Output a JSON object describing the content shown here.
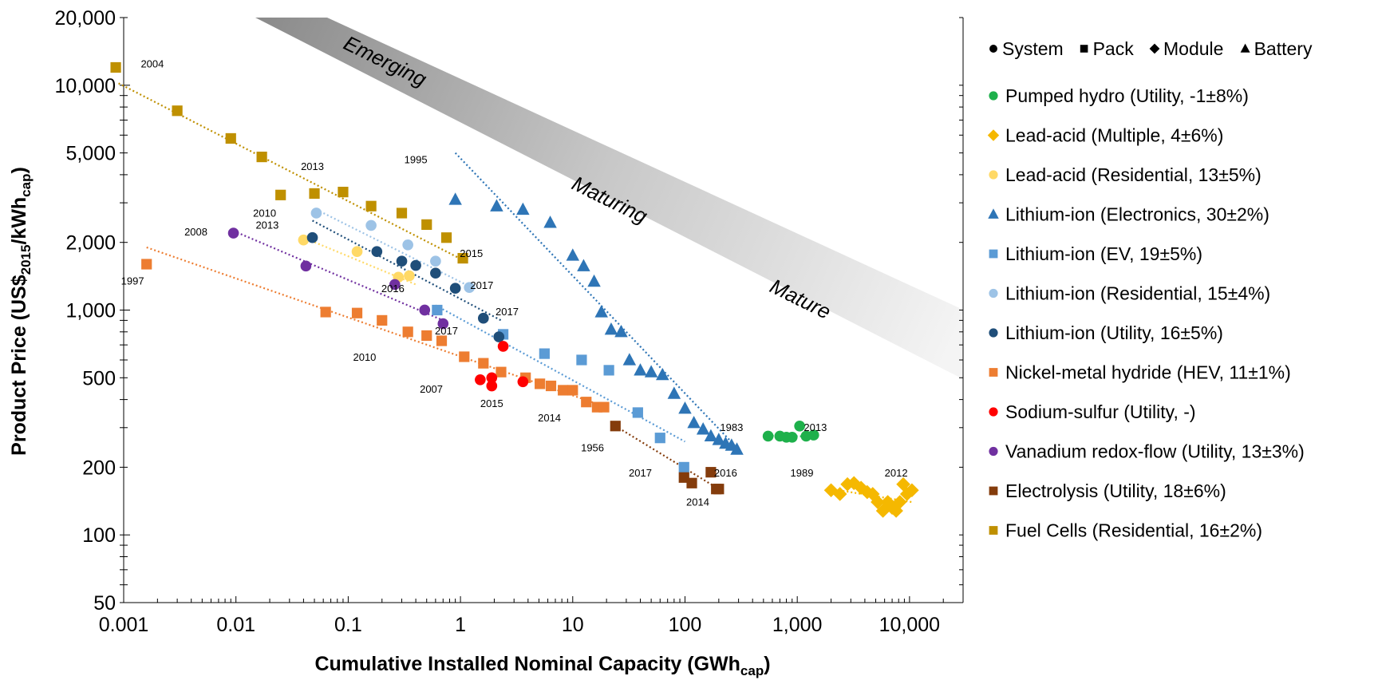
{
  "chart_data": {
    "type": "scatter",
    "xscale": "log",
    "yscale": "log",
    "xlim": [
      0.001,
      30000
    ],
    "ylim": [
      50,
      20000
    ],
    "xlabel_main": "Cumulative Installed Nominal Capacity (GWh",
    "xlabel_sub": "cap",
    "xlabel_end": ")",
    "ylabel_parts": [
      "Product Price (US$",
      "2015",
      "/kWh",
      "cap",
      ")"
    ],
    "x_ticks": [
      {
        "value": 0.001,
        "label": "0.001"
      },
      {
        "value": 0.01,
        "label": "0.01"
      },
      {
        "value": 0.1,
        "label": "0.1"
      },
      {
        "value": 1,
        "label": "1"
      },
      {
        "value": 10,
        "label": "10"
      },
      {
        "value": 100,
        "label": "100"
      },
      {
        "value": 1000,
        "label": "1,000"
      },
      {
        "value": 10000,
        "label": "10,000"
      }
    ],
    "y_ticks": [
      {
        "value": 50,
        "label": "50"
      },
      {
        "value": 100,
        "label": "100"
      },
      {
        "value": 200,
        "label": "200"
      },
      {
        "value": 500,
        "label": "500"
      },
      {
        "value": 1000,
        "label": "1,000"
      },
      {
        "value": 2000,
        "label": "2,000"
      },
      {
        "value": 5000,
        "label": "5,000"
      },
      {
        "value": 10000,
        "label": "10,000"
      },
      {
        "value": 20000,
        "label": "20,000"
      }
    ],
    "bands": [
      {
        "label": "Emerging",
        "x": 0.2,
        "y": 12000
      },
      {
        "label": "Maturing",
        "x": 20,
        "y": 2900
      },
      {
        "label": "Mature",
        "x": 1000,
        "y": 1050
      }
    ],
    "marker_legend": [
      {
        "symbol": "circle",
        "label": "System"
      },
      {
        "symbol": "square",
        "label": "Pack"
      },
      {
        "symbol": "diamond",
        "label": "Module"
      },
      {
        "symbol": "triangle",
        "label": "Battery"
      }
    ],
    "series": [
      {
        "name": "Pumped hydro (Utility, -1±8%)",
        "color": "#1eb04b",
        "marker": "circle",
        "x": [
          550,
          700,
          800,
          900,
          1050,
          1200,
          1400
        ],
        "y": [
          275,
          275,
          272,
          272,
          305,
          275,
          278
        ],
        "trend": [
          [
            550,
            276
          ],
          [
            1400,
            274
          ]
        ]
      },
      {
        "name": "Lead-acid (Multiple, 4±6%)",
        "color": "#f5b800",
        "marker": "diamond",
        "x": [
          2000,
          2400,
          2800,
          3200,
          3700,
          4200,
          4700,
          5200,
          5800,
          6400,
          7000,
          7600,
          8200,
          8800,
          9500,
          10500
        ],
        "y": [
          158,
          152,
          168,
          170,
          162,
          155,
          152,
          140,
          128,
          140,
          132,
          128,
          140,
          168,
          152,
          158
        ],
        "trend": [
          [
            2000,
            160
          ],
          [
            10500,
            140
          ]
        ]
      },
      {
        "name": "Lead-acid (Residential, 13±5%)",
        "color": "#ffd966",
        "marker": "circle",
        "x": [
          0.04,
          0.12,
          0.28,
          0.35
        ],
        "y": [
          2050,
          1820,
          1400,
          1420
        ],
        "trend": [
          [
            0.04,
            2100
          ],
          [
            0.4,
            1300
          ]
        ]
      },
      {
        "name": "Lithium-ion (Electronics, 30±2%)",
        "color": "#2e75b6",
        "marker": "triangle",
        "x": [
          0.9,
          2.1,
          3.6,
          6.3,
          10,
          12.5,
          15.5,
          18,
          22,
          27,
          32,
          40,
          50,
          63,
          80,
          100,
          120,
          145,
          170,
          200,
          230,
          260,
          290
        ],
        "y": [
          3100,
          2900,
          2800,
          2450,
          1750,
          1570,
          1340,
          980,
          820,
          800,
          600,
          540,
          530,
          515,
          425,
          365,
          315,
          295,
          275,
          265,
          255,
          250,
          240
        ],
        "trend": [
          [
            0.9,
            5000
          ],
          [
            300,
            240
          ]
        ]
      },
      {
        "name": "Lithium-ion (EV, 19±5%)",
        "color": "#5b9bd5",
        "marker": "square",
        "x": [
          0.62,
          2.4,
          5.6,
          12,
          21,
          38,
          60,
          98
        ],
        "y": [
          1000,
          780,
          640,
          600,
          540,
          350,
          270,
          200
        ],
        "trend": [
          [
            0.6,
            1050
          ],
          [
            100,
            260
          ]
        ]
      },
      {
        "name": "Lithium-ion (Residential, 15±4%)",
        "color": "#9dc3e6",
        "marker": "circle",
        "x": [
          0.052,
          0.16,
          0.34,
          0.6,
          1.2
        ],
        "y": [
          2700,
          2380,
          1950,
          1650,
          1260
        ],
        "trend": [
          [
            0.052,
            2800
          ],
          [
            1.3,
            1250
          ]
        ]
      },
      {
        "name": "Lithium-ion (Utility, 16±5%)",
        "color": "#1f4e79",
        "marker": "circle",
        "x": [
          0.048,
          0.18,
          0.3,
          0.4,
          0.6,
          0.9,
          1.6,
          2.2
        ],
        "y": [
          2100,
          1820,
          1650,
          1580,
          1460,
          1250,
          920,
          760
        ],
        "trend": [
          [
            0.048,
            2500
          ],
          [
            2.3,
            900
          ]
        ]
      },
      {
        "name": "Nickel-metal hydride (HEV, 11±1%)",
        "color": "#ed7d31",
        "marker": "square",
        "x": [
          0.0016,
          0.063,
          0.12,
          0.2,
          0.34,
          0.5,
          0.68,
          1.08,
          1.6,
          2.3,
          3.8,
          5.1,
          6.4,
          8.2,
          10,
          13.2,
          16.5,
          19
        ],
        "y": [
          1600,
          980,
          970,
          900,
          800,
          770,
          730,
          620,
          580,
          530,
          500,
          470,
          460,
          440,
          440,
          390,
          370,
          370
        ],
        "trend": [
          [
            0.0016,
            1900
          ],
          [
            20,
            370
          ]
        ]
      },
      {
        "name": "Sodium-sulfur (Utility, -)",
        "color": "#ff0000",
        "marker": "circle",
        "x": [
          1.5,
          1.9,
          1.9,
          2.4,
          3.6
        ],
        "y": [
          490,
          500,
          460,
          690,
          480
        ],
        "trend": []
      },
      {
        "name": "Vanadium redox-flow (Utility, 13±3%)",
        "color": "#7030a0",
        "marker": "circle",
        "x": [
          0.0095,
          0.042,
          0.26,
          0.48,
          0.7
        ],
        "y": [
          2200,
          1570,
          1300,
          1000,
          870
        ],
        "trend": [
          [
            0.0095,
            2250
          ],
          [
            0.7,
            900
          ]
        ]
      },
      {
        "name": "Electrolysis (Utility, 18±6%)",
        "color": "#843c0c",
        "marker": "square",
        "x": [
          24,
          98,
          115,
          170,
          190,
          200
        ],
        "y": [
          305,
          180,
          170,
          190,
          160,
          160
        ],
        "trend": [
          [
            24,
            305
          ],
          [
            200,
            160
          ]
        ]
      },
      {
        "name": "Fuel Cells (Residential, 16±2%)",
        "color": "#bf9000",
        "marker": "square",
        "x": [
          0.00085,
          0.003,
          0.009,
          0.017,
          0.025,
          0.05,
          0.09,
          0.16,
          0.3,
          0.5,
          0.75,
          1.05
        ],
        "y": [
          12000,
          7700,
          5800,
          4800,
          3250,
          3300,
          3350,
          2900,
          2700,
          2400,
          2100,
          1700
        ],
        "trend": [
          [
            0.0009,
            10200
          ],
          [
            1.1,
            1650
          ]
        ]
      }
    ],
    "annotations": [
      {
        "text": "2004",
        "x": 0.0018,
        "y": 12000
      },
      {
        "text": "1997",
        "x": 0.0012,
        "y": 1300
      },
      {
        "text": "2013",
        "x": 0.048,
        "y": 4200
      },
      {
        "text": "2010",
        "x": 0.018,
        "y": 2600
      },
      {
        "text": "2008",
        "x": 0.0044,
        "y": 2150
      },
      {
        "text": "2013",
        "x": 0.019,
        "y": 2300
      },
      {
        "text": "2015",
        "x": 1.25,
        "y": 1720
      },
      {
        "text": "2016",
        "x": 0.25,
        "y": 1200
      },
      {
        "text": "2017",
        "x": 1.55,
        "y": 1240
      },
      {
        "text": "2017",
        "x": 2.6,
        "y": 950
      },
      {
        "text": "2017",
        "x": 0.75,
        "y": 780
      },
      {
        "text": "2010",
        "x": 0.14,
        "y": 595
      },
      {
        "text": "1995",
        "x": 0.4,
        "y": 4500
      },
      {
        "text": "2007",
        "x": 0.55,
        "y": 430
      },
      {
        "text": "2015",
        "x": 1.9,
        "y": 370
      },
      {
        "text": "2014",
        "x": 6.2,
        "y": 320
      },
      {
        "text": "1956",
        "x": 15,
        "y": 235
      },
      {
        "text": "2017",
        "x": 40,
        "y": 182
      },
      {
        "text": "2016",
        "x": 230,
        "y": 182
      },
      {
        "text": "2014",
        "x": 130,
        "y": 135
      },
      {
        "text": "1983",
        "x": 260,
        "y": 290
      },
      {
        "text": "2013",
        "x": 1450,
        "y": 290
      },
      {
        "text": "1989",
        "x": 1100,
        "y": 182
      },
      {
        "text": "2012",
        "x": 7600,
        "y": 182
      }
    ]
  }
}
